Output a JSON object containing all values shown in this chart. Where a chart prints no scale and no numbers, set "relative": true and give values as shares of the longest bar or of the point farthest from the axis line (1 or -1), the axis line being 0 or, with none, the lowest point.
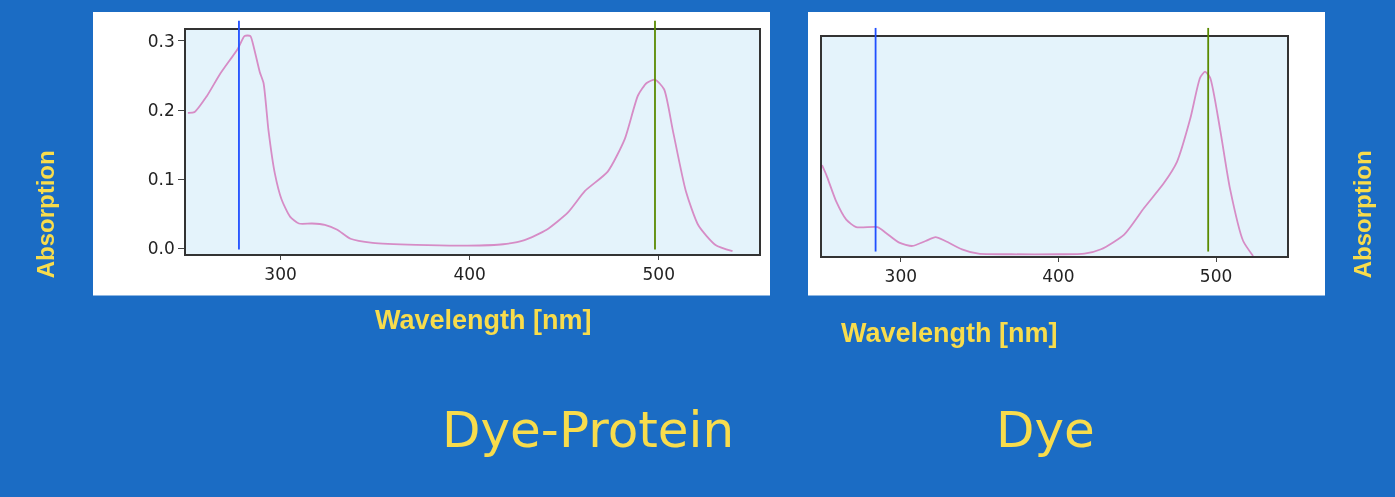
{
  "chart_data": [
    {
      "type": "line",
      "title": "Dye-Protein",
      "xlabel": "Wavelength [nm]",
      "ylabel": "Absorption",
      "x": [
        251,
        254.5,
        261,
        268,
        277.5,
        281,
        284,
        286,
        289,
        291,
        293.6,
        297,
        300.5,
        305,
        309.7,
        316.6,
        323.4,
        330,
        337,
        348.7,
        371.7,
        399,
        417.7,
        429,
        440.7,
        452,
        461,
        473,
        482,
        489,
        493.6,
        498,
        502.8,
        507.4,
        514.3,
        521,
        530,
        539
      ],
      "series": [
        {
          "color": "#d68cc6",
          "values": [
            0.196,
            0.197,
            0.22,
            0.252,
            0.289,
            0.307,
            0.307,
            0.289,
            0.255,
            0.239,
            0.171,
            0.108,
            0.071,
            0.046,
            0.036,
            0.036,
            0.034,
            0.027,
            0.014,
            0.008,
            0.005,
            0.004,
            0.006,
            0.012,
            0.027,
            0.052,
            0.083,
            0.111,
            0.158,
            0.221,
            0.239,
            0.244,
            0.23,
            0.171,
            0.083,
            0.033,
            0.005,
            -0.004
          ]
        }
      ],
      "xlim": [
        250,
        553
      ],
      "xticks": [
        300,
        400,
        500
      ],
      "ylim": [
        -0.008,
        0.316
      ],
      "yticks": [
        {
          "value": 0,
          "label": "0.0"
        },
        0.1,
        0.2,
        0.3
      ],
      "ref_lines": [
        {
          "axis": "x",
          "value": 278,
          "color": "#1f4fff"
        },
        {
          "axis": "x",
          "value": 498,
          "color": "#5a8a00"
        }
      ],
      "grid": false,
      "marker": "none",
      "line_style": "solid"
    },
    {
      "type": "line",
      "title": "Dye",
      "xlabel": "Wavelength [nm]",
      "ylabel": "Absorption",
      "relative": true,
      "x": [
        250,
        252.8,
        259,
        265.4,
        271.7,
        285.3,
        290.6,
        299,
        307.3,
        315.7,
        322,
        328.3,
        338.8,
        349.3,
        370.3,
        399.7,
        416.5,
        427,
        441.7,
        454.3,
        466.8,
        475.2,
        483.6,
        489.9,
        493,
        496.2,
        502.5,
        508.8,
        517.2,
        523.5
      ],
      "series": [
        {
          "color": "#d68cc6",
          "values": [
            0.493,
            0.439,
            0.296,
            0.197,
            0.156,
            0.156,
            0.125,
            0.072,
            0.054,
            0.081,
            0.102,
            0.081,
            0.036,
            0.012,
            0.009,
            0.009,
            0.012,
            0.036,
            0.116,
            0.26,
            0.394,
            0.511,
            0.744,
            0.968,
            1.0,
            0.968,
            0.69,
            0.367,
            0.081,
            0
          ]
        }
      ],
      "xlim": [
        250,
        545
      ],
      "xticks": [
        300,
        400,
        500
      ],
      "ref_lines": [
        {
          "axis": "x",
          "value": 284,
          "color": "#1f4fff"
        },
        {
          "axis": "x",
          "value": 495,
          "color": "#5a8a00"
        }
      ],
      "grid": false,
      "marker": "none",
      "line_style": "solid",
      "tick_labels": "x"
    }
  ]
}
